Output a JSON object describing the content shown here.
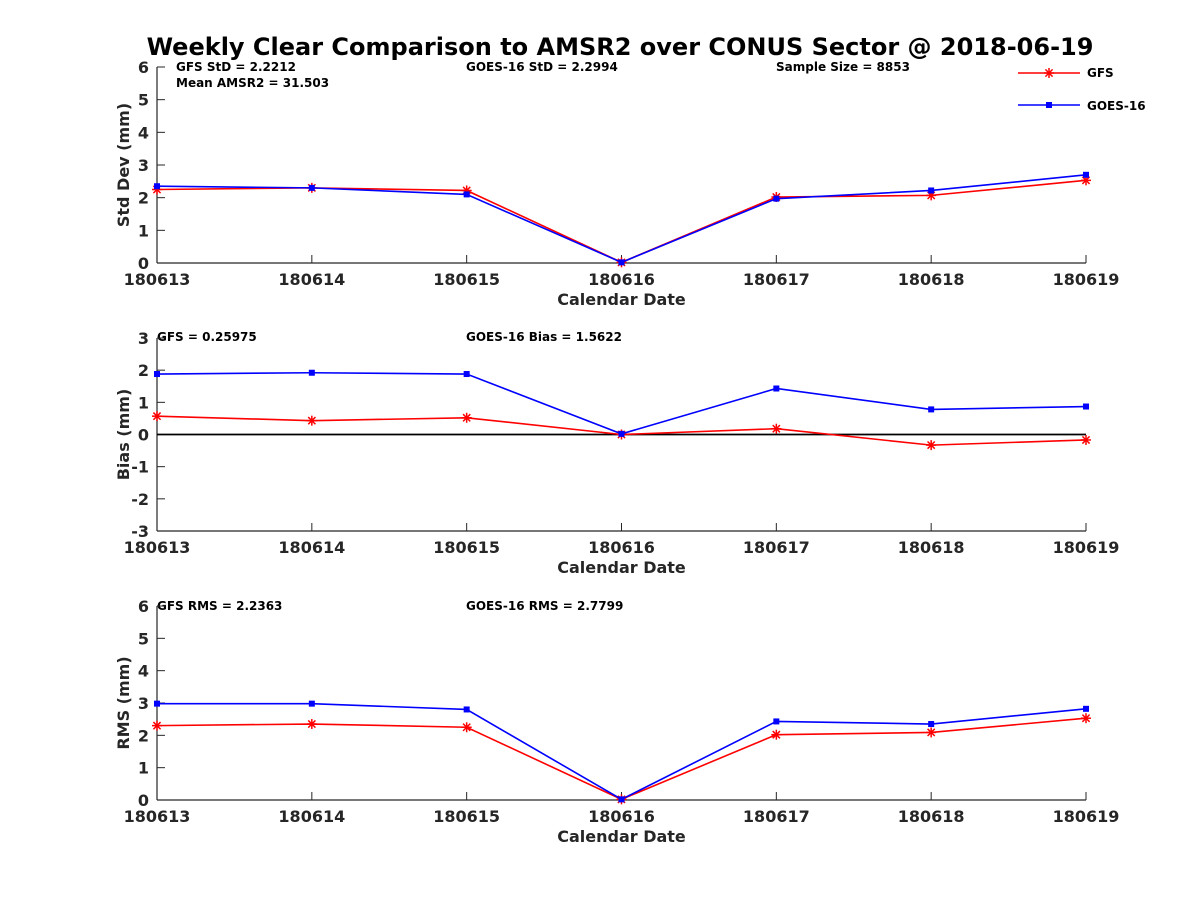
{
  "title": "Weekly Clear Comparison to AMSR2 over CONUS Sector @ 2018-06-19",
  "legend": {
    "position": "top-right",
    "entries": [
      {
        "label": "GFS",
        "color": "#ff0000",
        "marker": "asterisk"
      },
      {
        "label": "GOES-16",
        "color": "#0000ff",
        "marker": "square"
      }
    ]
  },
  "chart_data": [
    {
      "type": "line",
      "xlabel": "Calendar Date",
      "ylabel": "Std Dev (mm)",
      "categories": [
        "180613",
        "180614",
        "180615",
        "180616",
        "180617",
        "180618",
        "180619"
      ],
      "yticks": [
        "0",
        "1",
        "2",
        "3",
        "4",
        "5",
        "6"
      ],
      "ylim": [
        0,
        6
      ],
      "zero_line": false,
      "grid": false,
      "annotations": {
        "gfs_stat": "GFS StD = 2.2212",
        "mean_amsr2": "Mean AMSR2 = 31.503",
        "goes_stat": "GOES-16 StD = 2.2994",
        "sample_size": "Sample Size = 8853"
      },
      "series": [
        {
          "name": "GFS",
          "color": "#ff0000",
          "marker": "asterisk",
          "values": [
            2.25,
            2.3,
            2.22,
            0.02,
            2.02,
            2.07,
            2.53
          ]
        },
        {
          "name": "GOES-16",
          "color": "#0000ff",
          "marker": "square",
          "values": [
            2.35,
            2.3,
            2.1,
            0.02,
            1.97,
            2.22,
            2.7
          ]
        }
      ]
    },
    {
      "type": "line",
      "xlabel": "Calendar Date",
      "ylabel": "Bias (mm)",
      "categories": [
        "180613",
        "180614",
        "180615",
        "180616",
        "180617",
        "180618",
        "180619"
      ],
      "yticks": [
        "-3",
        "-2",
        "-1",
        "0",
        "1",
        "2",
        "3"
      ],
      "ylim": [
        -3,
        3
      ],
      "zero_line": true,
      "grid": false,
      "annotations": {
        "gfs_stat": "GFS = 0.25975",
        "goes_stat": "GOES-16 Bias  = 1.5622"
      },
      "series": [
        {
          "name": "GFS",
          "color": "#ff0000",
          "marker": "asterisk",
          "values": [
            0.57,
            0.43,
            0.52,
            0.0,
            0.18,
            -0.33,
            -0.17
          ]
        },
        {
          "name": "GOES-16",
          "color": "#0000ff",
          "marker": "square",
          "values": [
            1.88,
            1.92,
            1.88,
            0.02,
            1.43,
            0.78,
            0.87
          ]
        }
      ]
    },
    {
      "type": "line",
      "xlabel": "Calendar Date",
      "ylabel": "RMS (mm)",
      "categories": [
        "180613",
        "180614",
        "180615",
        "180616",
        "180617",
        "180618",
        "180619"
      ],
      "yticks": [
        "0",
        "1",
        "2",
        "3",
        "4",
        "5",
        "6"
      ],
      "ylim": [
        0,
        6
      ],
      "zero_line": false,
      "grid": false,
      "annotations": {
        "gfs_stat": "GFS RMS = 2.2363",
        "goes_stat": "GOES-16 RMS = 2.7799"
      },
      "series": [
        {
          "name": "GFS",
          "color": "#ff0000",
          "marker": "asterisk",
          "values": [
            2.3,
            2.35,
            2.25,
            0.02,
            2.02,
            2.09,
            2.53
          ]
        },
        {
          "name": "GOES-16",
          "color": "#0000ff",
          "marker": "square",
          "values": [
            2.98,
            2.98,
            2.8,
            0.02,
            2.43,
            2.35,
            2.82
          ]
        }
      ]
    }
  ]
}
